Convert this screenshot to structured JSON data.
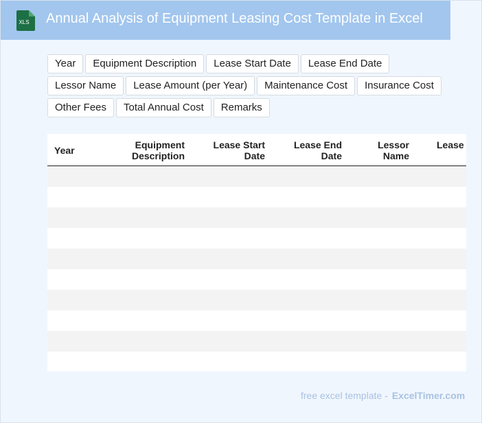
{
  "header": {
    "title": "Annual Analysis of Equipment Leasing Cost Template in Excel",
    "icon_label": "XLS",
    "icon_name": "excel-file-icon",
    "colors": {
      "bar": "#a2c6ee",
      "icon": "#1d7044"
    }
  },
  "field_chips": [
    "Year",
    "Equipment Description",
    "Lease Start Date",
    "Lease End Date",
    "Lessor Name",
    "Lease Amount (per Year)",
    "Maintenance Cost",
    "Insurance Cost",
    "Other Fees",
    "Total Annual Cost",
    "Remarks"
  ],
  "table": {
    "columns": [
      "Year",
      "Equipment\nDescription",
      "Lease Start\nDate",
      "Lease End\nDate",
      "Lessor\nName",
      "Lease"
    ],
    "empty_rows": 10
  },
  "footer": {
    "text": "free excel template -",
    "brand": "ExcelTimer.com"
  }
}
